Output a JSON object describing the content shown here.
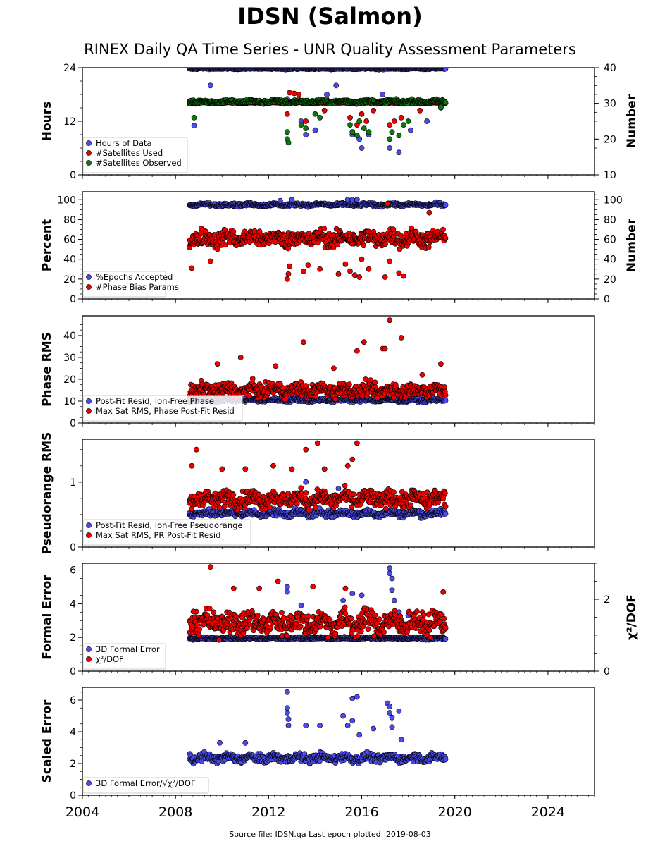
{
  "header": {
    "title": "IDSN (Salmon)",
    "subtitle": "RINEX Daily QA Time Series - UNR Quality Assessment Parameters"
  },
  "footer": {
    "source": "Source file: IDSN.qa Last epoch plotted: 2019-08-03"
  },
  "colors": {
    "blue": "#4c4cee",
    "red": "#ee0000",
    "green": "#0a7a0a",
    "edge": "#000000"
  },
  "chart_data": [
    {
      "type": "scatter",
      "panel": "hours-number",
      "ylabel": "Hours",
      "ylim": [
        0,
        24
      ],
      "yticks": [
        0,
        12,
        24
      ],
      "y2label": "Number",
      "y2lim": [
        10,
        40
      ],
      "y2ticks": [
        10,
        20,
        30,
        40
      ],
      "xlim": [
        2004,
        2026
      ],
      "xticks": [
        2004,
        2008,
        2012,
        2016,
        2020,
        2024
      ],
      "legend": "lower-left",
      "series": [
        {
          "name": "Hours of Data",
          "color": "blue",
          "axis": "left",
          "start": 2008.6,
          "end": 2019.6,
          "base": 23.8,
          "noise": 0.15,
          "outliers": [
            [
              2008.8,
              11
            ],
            [
              2012.8,
              17
            ],
            [
              2012.9,
              16
            ],
            [
              2013.4,
              12
            ],
            [
              2013.6,
              9
            ],
            [
              2014.0,
              10
            ],
            [
              2014.5,
              18
            ],
            [
              2015.6,
              9
            ],
            [
              2015.9,
              8
            ],
            [
              2016.0,
              6
            ],
            [
              2016.3,
              9
            ],
            [
              2017.2,
              6
            ],
            [
              2017.6,
              5
            ],
            [
              2018.1,
              10
            ],
            [
              2018.8,
              12
            ],
            [
              2019.4,
              15
            ],
            [
              2014.9,
              20
            ],
            [
              2009.5,
              20
            ],
            [
              2016.9,
              18
            ]
          ]
        },
        {
          "name": "#Satellites Used",
          "color": "red",
          "axis": "right",
          "start": 2008.6,
          "end": 2019.6,
          "base": 30.2,
          "noise": 0.25,
          "outliers": [
            [
              2012.9,
              33
            ],
            [
              2013.1,
              32.8
            ],
            [
              2013.3,
              32.5
            ],
            [
              2015.5,
              26
            ],
            [
              2015.8,
              24
            ],
            [
              2016.0,
              27
            ],
            [
              2016.2,
              25
            ],
            [
              2016.5,
              28
            ],
            [
              2017.2,
              24
            ],
            [
              2017.7,
              26
            ],
            [
              2017.4,
              25
            ],
            [
              2012.8,
              27
            ],
            [
              2013.6,
              25
            ],
            [
              2014.4,
              28
            ],
            [
              2018.5,
              28
            ]
          ]
        },
        {
          "name": "#Satellites Observed",
          "color": "green",
          "axis": "right",
          "start": 2008.6,
          "end": 2019.6,
          "base": 30.5,
          "noise": 0.5,
          "outliers": [
            [
              2008.8,
              26
            ],
            [
              2012.8,
              20
            ],
            [
              2012.8,
              22
            ],
            [
              2012.85,
              19
            ],
            [
              2013.4,
              24
            ],
            [
              2013.6,
              23
            ],
            [
              2014.0,
              27
            ],
            [
              2014.2,
              26
            ],
            [
              2015.5,
              24
            ],
            [
              2015.6,
              22
            ],
            [
              2015.8,
              21
            ],
            [
              2015.9,
              25
            ],
            [
              2016.1,
              23
            ],
            [
              2016.3,
              22
            ],
            [
              2017.2,
              20
            ],
            [
              2017.3,
              22
            ],
            [
              2017.6,
              21
            ],
            [
              2017.8,
              24
            ],
            [
              2018.0,
              25
            ],
            [
              2019.4,
              29
            ]
          ]
        }
      ]
    },
    {
      "type": "scatter",
      "panel": "percent-number",
      "ylabel": "Percent",
      "ylim": [
        0,
        108
      ],
      "yticks": [
        0,
        20,
        40,
        60,
        80,
        100
      ],
      "y2label": "Number",
      "y2lim": [
        0,
        108
      ],
      "y2ticks": [
        0,
        20,
        40,
        60,
        80,
        100
      ],
      "xlim": [
        2004,
        2026
      ],
      "xticks": [
        2004,
        2008,
        2012,
        2016,
        2020,
        2024
      ],
      "legend": "lower-left",
      "series": [
        {
          "name": "%Epochs Accepted",
          "color": "blue",
          "axis": "left",
          "start": 2008.6,
          "end": 2019.6,
          "base": 95,
          "noise": 1.5,
          "outliers": [
            [
              2015.4,
              100
            ],
            [
              2015.6,
              100
            ],
            [
              2015.8,
              100
            ],
            [
              2012.5,
              99
            ],
            [
              2013.0,
              100
            ]
          ]
        },
        {
          "name": "#Phase Bias Params",
          "color": "red",
          "axis": "right",
          "start": 2008.6,
          "end": 2019.6,
          "base": 61,
          "noise": 8,
          "outliers": [
            [
              2008.7,
              31
            ],
            [
              2009.5,
              38
            ],
            [
              2012.8,
              20
            ],
            [
              2012.85,
              25
            ],
            [
              2012.9,
              33
            ],
            [
              2013.5,
              28
            ],
            [
              2013.7,
              34
            ],
            [
              2014.2,
              30
            ],
            [
              2015.0,
              25
            ],
            [
              2015.3,
              35
            ],
            [
              2015.5,
              28
            ],
            [
              2015.7,
              24
            ],
            [
              2015.9,
              22
            ],
            [
              2016.0,
              40
            ],
            [
              2016.3,
              30
            ],
            [
              2017.0,
              22
            ],
            [
              2017.2,
              38
            ],
            [
              2017.6,
              26
            ],
            [
              2017.8,
              23
            ],
            [
              2018.9,
              87
            ],
            [
              2017.1,
              96
            ]
          ]
        }
      ]
    },
    {
      "type": "scatter",
      "panel": "phase-rms",
      "ylabel": "Phase RMS",
      "ylim": [
        0,
        49
      ],
      "yticks": [
        0,
        10,
        20,
        30,
        40
      ],
      "xlim": [
        2004,
        2026
      ],
      "xticks": [
        2004,
        2008,
        2012,
        2016,
        2020,
        2024
      ],
      "legend": "lower-left",
      "series": [
        {
          "name": "Post-Fit Resid, Ion-Free Phase",
          "color": "blue",
          "axis": "left",
          "start": 2008.6,
          "end": 2019.6,
          "base": 10.5,
          "noise": 0.8,
          "outliers": []
        },
        {
          "name": "Max Sat RMS, Phase Post-Fit Resid",
          "color": "red",
          "axis": "left",
          "start": 2008.6,
          "end": 2019.6,
          "base": 15,
          "noise": 3,
          "outliers": [
            [
              2017.2,
              47
            ],
            [
              2017.7,
              39
            ],
            [
              2013.5,
              37
            ],
            [
              2016.1,
              37
            ],
            [
              2015.8,
              33
            ],
            [
              2016.9,
              34
            ],
            [
              2017.0,
              34
            ],
            [
              2010.8,
              30
            ],
            [
              2009.8,
              27
            ],
            [
              2012.3,
              26
            ],
            [
              2014.8,
              25
            ],
            [
              2019.4,
              27
            ],
            [
              2018.6,
              22
            ]
          ]
        }
      ]
    },
    {
      "type": "scatter",
      "panel": "pseudorange-rms",
      "ylabel": "Pseudorange RMS",
      "ylim": [
        0,
        1.66
      ],
      "yticks": [
        0,
        1
      ],
      "xlim": [
        2004,
        2026
      ],
      "xticks": [
        2004,
        2008,
        2012,
        2016,
        2020,
        2024
      ],
      "legend": "lower-left",
      "series": [
        {
          "name": "Post-Fit Resid, Ion-Free Pseudorange",
          "color": "blue",
          "axis": "left",
          "start": 2008.6,
          "end": 2019.6,
          "base": 0.52,
          "noise": 0.05,
          "outliers": [
            [
              2013.6,
              1.0
            ],
            [
              2015.0,
              0.9
            ]
          ]
        },
        {
          "name": "Max Sat RMS, PR Post-Fit Resid",
          "color": "red",
          "axis": "left",
          "start": 2008.6,
          "end": 2019.6,
          "base": 0.74,
          "noise": 0.12,
          "outliers": [
            [
              2008.9,
              1.5
            ],
            [
              2008.7,
              1.25
            ],
            [
              2013.6,
              1.5
            ],
            [
              2014.1,
              1.6
            ],
            [
              2015.8,
              1.6
            ],
            [
              2015.4,
              1.25
            ],
            [
              2014.4,
              1.2
            ],
            [
              2015.6,
              1.35
            ],
            [
              2011.0,
              1.2
            ],
            [
              2010.0,
              1.2
            ],
            [
              2012.2,
              1.25
            ],
            [
              2013.0,
              1.2
            ]
          ]
        }
      ]
    },
    {
      "type": "scatter",
      "panel": "formal-error",
      "ylabel": "Formal Error",
      "ylim": [
        0,
        6.4
      ],
      "yticks": [
        0,
        2,
        4,
        6
      ],
      "y2label": "χ²/DOF",
      "y2lim": [
        0,
        3.0
      ],
      "y2ticks": [
        0,
        2
      ],
      "xlim": [
        2004,
        2026
      ],
      "xticks": [
        2004,
        2008,
        2012,
        2016,
        2020,
        2024
      ],
      "legend": "lower-left",
      "series": [
        {
          "name": "3D Formal Error",
          "color": "blue",
          "axis": "left",
          "start": 2008.6,
          "end": 2019.6,
          "base": 1.95,
          "noise": 0.06,
          "outliers": [
            [
              2012.8,
              5.0
            ],
            [
              2012.8,
              4.7
            ],
            [
              2013.4,
              3.9
            ],
            [
              2015.2,
              4.2
            ],
            [
              2015.6,
              4.6
            ],
            [
              2016.0,
              4.5
            ],
            [
              2017.2,
              6.1
            ],
            [
              2017.2,
              5.8
            ],
            [
              2017.3,
              5.5
            ],
            [
              2017.3,
              4.8
            ],
            [
              2017.4,
              4.2
            ],
            [
              2017.6,
              3.5
            ],
            [
              2018.0,
              3.3
            ]
          ]
        },
        {
          "name": "χ²/DOF",
          "color": "red",
          "axis": "right",
          "start": 2008.6,
          "end": 2019.6,
          "base": 1.35,
          "noise": 0.3,
          "outliers": [
            [
              2009.5,
              2.9
            ],
            [
              2012.4,
              2.5
            ],
            [
              2010.5,
              2.3
            ],
            [
              2011.6,
              2.3
            ],
            [
              2013.9,
              2.35
            ],
            [
              2015.3,
              2.3
            ],
            [
              2019.5,
              2.2
            ]
          ]
        }
      ]
    },
    {
      "type": "scatter",
      "panel": "scaled-error",
      "ylabel": "Scaled Error",
      "ylim": [
        0,
        6.8
      ],
      "yticks": [
        0,
        2,
        4,
        6
      ],
      "xlim": [
        2004,
        2026
      ],
      "xticks": [
        2004,
        2008,
        2012,
        2016,
        2020,
        2024
      ],
      "legend": "lower-left",
      "series": [
        {
          "name": "3D Formal Error/√χ²/DOF",
          "color": "blue",
          "axis": "left",
          "start": 2008.6,
          "end": 2019.6,
          "base": 2.35,
          "noise": 0.25,
          "outliers": [
            [
              2012.8,
              6.5
            ],
            [
              2012.8,
              5.5
            ],
            [
              2012.8,
              5.2
            ],
            [
              2012.85,
              4.8
            ],
            [
              2012.85,
              4.4
            ],
            [
              2013.6,
              4.4
            ],
            [
              2014.2,
              4.4
            ],
            [
              2015.2,
              5.0
            ],
            [
              2015.4,
              4.4
            ],
            [
              2015.6,
              4.7
            ],
            [
              2015.6,
              6.1
            ],
            [
              2015.8,
              6.2
            ],
            [
              2015.9,
              3.8
            ],
            [
              2016.5,
              4.2
            ],
            [
              2017.1,
              5.8
            ],
            [
              2017.2,
              5.6
            ],
            [
              2017.2,
              5.2
            ],
            [
              2017.3,
              4.9
            ],
            [
              2017.3,
              4.3
            ],
            [
              2017.6,
              5.3
            ],
            [
              2017.7,
              3.5
            ],
            [
              2009.9,
              3.3
            ],
            [
              2011.0,
              3.3
            ]
          ]
        }
      ]
    }
  ]
}
